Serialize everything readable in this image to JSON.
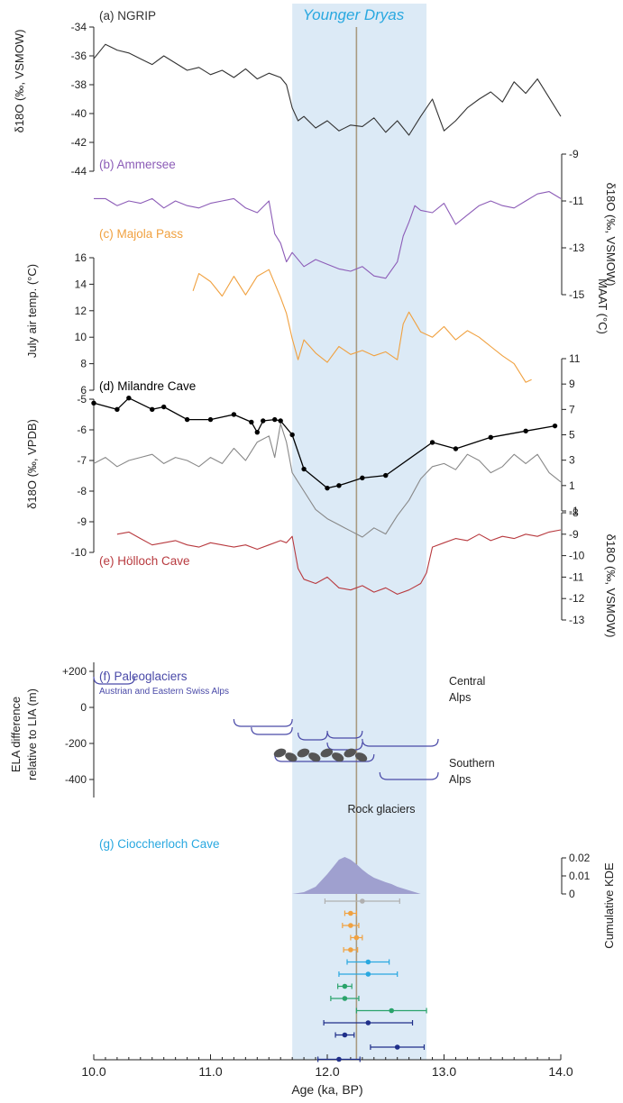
{
  "chart_data": {
    "type": "line",
    "x_axis": {
      "label": "Age (ka, BP)",
      "lim": [
        10.0,
        14.0
      ],
      "ticks": [
        "10.0",
        "11.0",
        "12.0",
        "13.0",
        "14.0"
      ]
    },
    "highlight": {
      "label": "Younger Dryas",
      "range": [
        11.7,
        12.85
      ],
      "color": "#dceaf6",
      "label_color": "#29a8e0"
    },
    "reference_line": {
      "x": 12.25,
      "color": "#a89a80"
    },
    "panels": [
      {
        "id": "a",
        "label": "(a) NGRIP",
        "color": "#333333",
        "ylabel": "δ18O (‰, VSMOW)",
        "axis_side": "left",
        "ylim": [
          -44,
          -34
        ],
        "ticks": [
          "-34",
          "-36",
          "-38",
          "-40",
          "-42",
          "-44"
        ],
        "x": [
          10.0,
          10.1,
          10.2,
          10.3,
          10.4,
          10.5,
          10.6,
          10.7,
          10.8,
          10.9,
          11.0,
          11.1,
          11.2,
          11.3,
          11.4,
          11.5,
          11.6,
          11.65,
          11.7,
          11.75,
          11.8,
          11.9,
          12.0,
          12.1,
          12.2,
          12.3,
          12.4,
          12.5,
          12.6,
          12.7,
          12.8,
          12.9,
          13.0,
          13.1,
          13.2,
          13.3,
          13.4,
          13.5,
          13.6,
          13.7,
          13.8,
          13.9,
          14.0
        ],
        "y": [
          -36.2,
          -35.2,
          -35.6,
          -35.8,
          -36.2,
          -36.6,
          -36.0,
          -36.5,
          -37.0,
          -36.8,
          -37.3,
          -37.0,
          -37.5,
          -36.9,
          -37.6,
          -37.2,
          -37.5,
          -38.0,
          -39.6,
          -40.5,
          -40.2,
          -41.0,
          -40.5,
          -41.2,
          -40.8,
          -40.9,
          -40.3,
          -41.3,
          -40.5,
          -41.5,
          -40.2,
          -39.0,
          -41.2,
          -40.5,
          -39.6,
          -39.0,
          -38.5,
          -39.2,
          -37.8,
          -38.6,
          -37.6,
          -38.9,
          -40.2
        ]
      },
      {
        "id": "b",
        "label": "(b) Ammersee",
        "color": "#8c5cb7",
        "ylabel": "δ18O (‰, VSMOW)",
        "axis_side": "right",
        "ylim": [
          -15,
          -9
        ],
        "ticks": [
          "-9",
          "-11",
          "-13",
          "-15"
        ],
        "x": [
          10.0,
          10.1,
          10.2,
          10.3,
          10.4,
          10.5,
          10.6,
          10.7,
          10.8,
          10.9,
          11.0,
          11.1,
          11.2,
          11.3,
          11.4,
          11.5,
          11.55,
          11.6,
          11.65,
          11.7,
          11.8,
          11.9,
          12.0,
          12.1,
          12.2,
          12.3,
          12.4,
          12.5,
          12.6,
          12.65,
          12.7,
          12.75,
          12.8,
          12.9,
          13.0,
          13.1,
          13.2,
          13.3,
          13.4,
          13.5,
          13.6,
          13.7,
          13.8,
          13.9,
          14.0
        ],
        "y": [
          -10.9,
          -10.9,
          -11.2,
          -11.0,
          -11.1,
          -10.9,
          -11.3,
          -11.0,
          -11.2,
          -11.3,
          -11.1,
          -11.0,
          -10.9,
          -11.3,
          -11.5,
          -11.0,
          -12.4,
          -12.8,
          -13.6,
          -13.2,
          -13.8,
          -13.5,
          -13.7,
          -13.9,
          -14.0,
          -13.8,
          -14.2,
          -14.3,
          -13.6,
          -12.5,
          -11.9,
          -11.2,
          -11.4,
          -11.5,
          -11.1,
          -12.0,
          -11.6,
          -11.2,
          -11.0,
          -11.2,
          -11.3,
          -11.0,
          -10.7,
          -10.6,
          -10.9
        ]
      },
      {
        "id": "c",
        "label": "(c) Majola Pass",
        "color": "#f0a140",
        "ylabel": "July air temp. (°C)",
        "axis_side": "left",
        "ylim": [
          6,
          16
        ],
        "ticks": [
          "16",
          "14",
          "12",
          "10",
          "8",
          "6"
        ],
        "x": [
          10.85,
          10.9,
          11.0,
          11.1,
          11.2,
          11.3,
          11.4,
          11.5,
          11.6,
          11.65,
          11.7,
          11.75,
          11.8,
          11.9,
          12.0,
          12.1,
          12.2,
          12.3,
          12.4,
          12.5,
          12.6,
          12.65,
          12.7,
          12.8,
          12.9,
          13.0,
          13.1,
          13.2,
          13.3,
          13.4,
          13.5,
          13.6,
          13.7,
          13.75
        ],
        "y": [
          13.5,
          14.8,
          14.2,
          13.1,
          14.6,
          13.2,
          14.6,
          15.1,
          13.0,
          11.8,
          9.9,
          8.3,
          9.8,
          8.8,
          8.1,
          9.3,
          8.7,
          9.0,
          8.6,
          8.9,
          8.3,
          11.0,
          11.9,
          10.4,
          10.0,
          10.8,
          9.8,
          10.5,
          10.0,
          9.3,
          8.6,
          8.0,
          6.6,
          6.8
        ]
      },
      {
        "id": "d",
        "label": "(d) Milandre Cave",
        "color": "#000000",
        "ylabel": "MAAT (°C)",
        "axis_side": "right",
        "ylim": [
          -1,
          11
        ],
        "ticks": [
          "11",
          "9",
          "7",
          "5",
          "3",
          "1",
          "-1"
        ],
        "x": [
          10.0,
          10.2,
          10.3,
          10.5,
          10.6,
          10.8,
          11.0,
          11.2,
          11.35,
          11.4,
          11.45,
          11.55,
          11.6,
          11.7,
          11.8,
          12.0,
          12.1,
          12.3,
          12.5,
          12.9,
          13.1,
          13.4,
          13.7,
          13.95
        ],
        "y": [
          7.5,
          7.0,
          7.9,
          7.0,
          7.2,
          6.2,
          6.2,
          6.6,
          6.0,
          5.2,
          6.1,
          6.2,
          6.1,
          5.0,
          2.3,
          0.8,
          1.0,
          1.6,
          1.8,
          4.4,
          3.9,
          4.8,
          5.3,
          5.7
        ]
      },
      {
        "id": "d2",
        "label": "",
        "color": "#888888",
        "ylabel": "δ18O (‰, VPDB)",
        "axis_side": "left",
        "ylim": [
          -10,
          -5
        ],
        "ticks": [
          "-5",
          "-6",
          "-7",
          "-8",
          "-9",
          "-10"
        ],
        "x": [
          10.0,
          10.1,
          10.2,
          10.3,
          10.4,
          10.5,
          10.6,
          10.7,
          10.8,
          10.9,
          11.0,
          11.1,
          11.2,
          11.3,
          11.4,
          11.5,
          11.55,
          11.6,
          11.65,
          11.7,
          11.8,
          11.9,
          12.0,
          12.1,
          12.2,
          12.3,
          12.4,
          12.5,
          12.6,
          12.7,
          12.8,
          12.9,
          13.0,
          13.1,
          13.2,
          13.3,
          13.4,
          13.5,
          13.6,
          13.7,
          13.8,
          13.9,
          14.0
        ],
        "y": [
          -7.1,
          -6.9,
          -7.2,
          -7.0,
          -6.9,
          -6.8,
          -7.1,
          -6.9,
          -7.0,
          -7.2,
          -6.9,
          -7.1,
          -6.6,
          -7.0,
          -6.4,
          -6.2,
          -6.9,
          -5.8,
          -6.4,
          -7.4,
          -8.0,
          -8.6,
          -8.9,
          -9.1,
          -9.3,
          -9.5,
          -9.2,
          -9.4,
          -8.8,
          -8.3,
          -7.6,
          -7.2,
          -7.1,
          -7.3,
          -6.8,
          -7.0,
          -7.4,
          -7.2,
          -6.8,
          -7.1,
          -6.8,
          -7.4,
          -7.7
        ]
      },
      {
        "id": "e",
        "label": "(e) Hölloch Cave",
        "color": "#b83a3f",
        "ylabel": "δ18O (‰, VSMOW)",
        "axis_side": "right",
        "ylim": [
          -13,
          -8
        ],
        "ticks": [
          "-8",
          "-9",
          "-10",
          "-11",
          "-12",
          "-13"
        ],
        "x": [
          10.2,
          10.3,
          10.4,
          10.5,
          10.6,
          10.7,
          10.8,
          10.9,
          11.0,
          11.1,
          11.2,
          11.3,
          11.4,
          11.5,
          11.6,
          11.65,
          11.7,
          11.75,
          11.8,
          11.9,
          12.0,
          12.1,
          12.2,
          12.3,
          12.4,
          12.5,
          12.6,
          12.7,
          12.8,
          12.85,
          12.9,
          13.0,
          13.1,
          13.2,
          13.3,
          13.4,
          13.5,
          13.6,
          13.7,
          13.8,
          13.9,
          14.0
        ],
        "y": [
          -9.0,
          -8.9,
          -9.2,
          -9.5,
          -9.4,
          -9.3,
          -9.5,
          -9.6,
          -9.4,
          -9.5,
          -9.6,
          -9.5,
          -9.7,
          -9.5,
          -9.3,
          -9.4,
          -9.1,
          -10.6,
          -11.1,
          -11.3,
          -11.0,
          -11.5,
          -11.6,
          -11.4,
          -11.7,
          -11.5,
          -11.8,
          -11.6,
          -11.3,
          -10.8,
          -9.6,
          -9.4,
          -9.2,
          -9.3,
          -9.0,
          -9.3,
          -9.1,
          -9.2,
          -9.0,
          -9.1,
          -8.9,
          -8.8
        ]
      }
    ],
    "paleoglaciers": {
      "label": "(f) Paleoglaciers",
      "sublabel": "Austrian and Eastern Swiss Alps",
      "ylabel_line1": "ELA difference",
      "ylabel_line2": "relative to LIA (m)",
      "ylim": [
        -500,
        250
      ],
      "ticks": [
        "+200",
        "0",
        "-200",
        "-400"
      ],
      "tick_values": [
        200,
        0,
        -200,
        -400
      ],
      "color": "#4a4aa8",
      "labels": [
        "Central",
        "Alps",
        "Southern",
        "Alps",
        "Rock glaciers"
      ],
      "arcs": [
        {
          "x1": 10.0,
          "x2": 10.35,
          "y": 130
        },
        {
          "x1": 11.2,
          "x2": 11.7,
          "y": -105
        },
        {
          "x1": 11.35,
          "x2": 11.7,
          "y": -150
        },
        {
          "x1": 11.75,
          "x2": 12.0,
          "y": -180
        },
        {
          "x1": 12.0,
          "x2": 12.3,
          "y": -170
        },
        {
          "x1": 12.3,
          "x2": 12.95,
          "y": -215
        },
        {
          "x1": 12.0,
          "x2": 12.3,
          "y": -235
        },
        {
          "x1": 11.55,
          "x2": 12.4,
          "y": -300
        },
        {
          "x1": 12.45,
          "x2": 12.95,
          "y": -400
        }
      ],
      "rocks_x": [
        11.6,
        11.7,
        11.8,
        11.9,
        12.0,
        12.1,
        12.2,
        12.3
      ]
    },
    "ciocc": {
      "label": "(g) Cioccherloch Cave",
      "ylabel": "Cumulative KDE",
      "ylim": [
        0,
        0.02
      ],
      "ticks": [
        "0.02",
        "0.01",
        "0"
      ],
      "tick_values": [
        0.02,
        0.01,
        0
      ],
      "kde_color": "#9fa0cf",
      "kde_x": [
        11.7,
        11.8,
        11.9,
        12.0,
        12.05,
        12.1,
        12.15,
        12.2,
        12.25,
        12.3,
        12.35,
        12.4,
        12.5,
        12.55,
        12.6,
        12.7,
        12.8
      ],
      "kde_y": [
        0,
        0.001,
        0.004,
        0.011,
        0.015,
        0.019,
        0.0205,
        0.019,
        0.0165,
        0.0135,
        0.011,
        0.009,
        0.0065,
        0.0055,
        0.004,
        0.002,
        0
      ],
      "dates": [
        {
          "x": 12.3,
          "e": 0.32,
          "c": "#b0b0b0"
        },
        {
          "x": 12.2,
          "e": 0.05,
          "c": "#f0a140"
        },
        {
          "x": 12.2,
          "e": 0.07,
          "c": "#f0a140"
        },
        {
          "x": 12.25,
          "e": 0.05,
          "c": "#f0a140"
        },
        {
          "x": 12.2,
          "e": 0.06,
          "c": "#f0a140"
        },
        {
          "x": 12.35,
          "e": 0.18,
          "c": "#29a8e0"
        },
        {
          "x": 12.35,
          "e": 0.25,
          "c": "#29a8e0"
        },
        {
          "x": 12.15,
          "e": 0.06,
          "c": "#2aa36b"
        },
        {
          "x": 12.15,
          "e": 0.12,
          "c": "#2aa36b"
        },
        {
          "x": 12.55,
          "e": 0.3,
          "c": "#2aa36b"
        },
        {
          "x": 12.35,
          "e": 0.38,
          "c": "#1f2f8a"
        },
        {
          "x": 12.15,
          "e": 0.08,
          "c": "#1f2f8a"
        },
        {
          "x": 12.6,
          "e": 0.23,
          "c": "#1f2f8a"
        },
        {
          "x": 12.1,
          "e": 0.18,
          "c": "#1f2f8a"
        }
      ]
    }
  }
}
